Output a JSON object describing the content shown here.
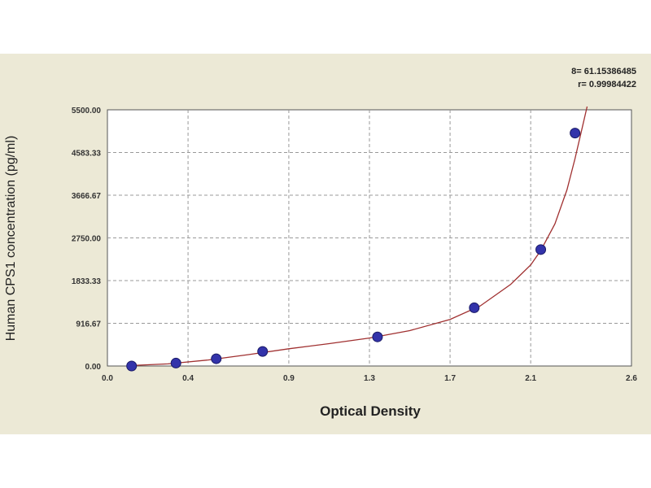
{
  "stats": {
    "s_line": "8= 61.15386485",
    "r_line": "r= 0.99984422"
  },
  "chart_data": {
    "type": "scatter",
    "title": "",
    "xlabel": "Optical Density",
    "ylabel": "Human CPS1 concentration (pg/ml)",
    "xlim": [
      0.0,
      2.6
    ],
    "ylim": [
      0,
      5500
    ],
    "x_ticks": [
      0.0,
      0.4,
      0.9,
      1.3,
      1.7,
      2.1,
      2.6
    ],
    "x_tick_labels": [
      "0.0",
      "0.4",
      "0.9",
      "1.3",
      "1.7",
      "2.1",
      "2.6"
    ],
    "y_ticks": [
      0,
      916.67,
      1833.33,
      2750,
      3666.67,
      4583.33,
      5500
    ],
    "y_tick_labels": [
      "0.00",
      "916.67",
      "1833.33",
      "2750.00",
      "3666.67",
      "4583.33",
      "5500.00"
    ],
    "grid": true,
    "point_color": "#3333aa",
    "curve_color": "#a03030",
    "points": [
      {
        "x": 0.12,
        "y": 0
      },
      {
        "x": 0.34,
        "y": 62.5
      },
      {
        "x": 0.54,
        "y": 156
      },
      {
        "x": 0.77,
        "y": 312.5
      },
      {
        "x": 1.34,
        "y": 625
      },
      {
        "x": 1.82,
        "y": 1250
      },
      {
        "x": 2.15,
        "y": 2500
      },
      {
        "x": 2.32,
        "y": 5000
      }
    ],
    "fit_curve": [
      [
        0.12,
        10
      ],
      [
        0.3,
        45
      ],
      [
        0.5,
        130
      ],
      [
        0.7,
        245
      ],
      [
        0.9,
        370
      ],
      [
        1.1,
        480
      ],
      [
        1.3,
        600
      ],
      [
        1.5,
        760
      ],
      [
        1.7,
        1000
      ],
      [
        1.85,
        1290
      ],
      [
        2.0,
        1750
      ],
      [
        2.1,
        2170
      ],
      [
        2.15,
        2480
      ],
      [
        2.22,
        3050
      ],
      [
        2.28,
        3780
      ],
      [
        2.32,
        4450
      ],
      [
        2.36,
        5200
      ],
      [
        2.38,
        5650
      ]
    ]
  }
}
